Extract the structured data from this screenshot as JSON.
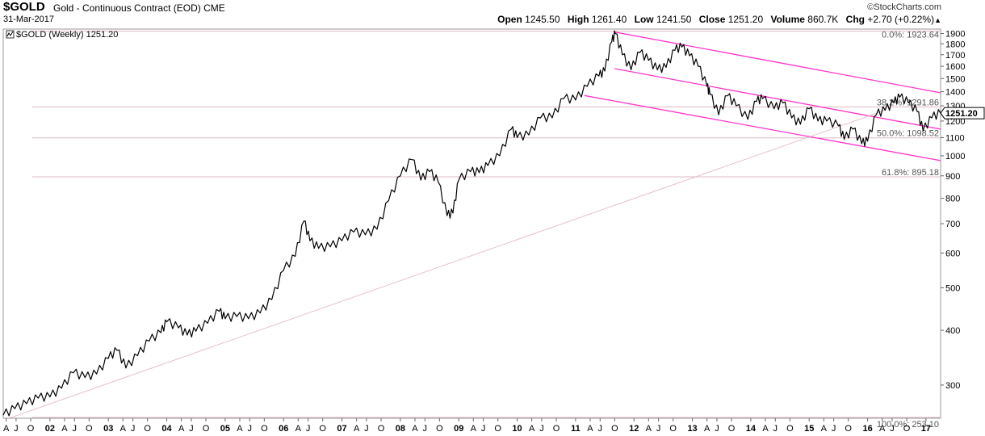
{
  "header": {
    "symbol": "$GOLD",
    "description": "Gold - Continuous Contract (EOD)",
    "exchange": "CME",
    "date": "31-Mar-2017",
    "brand": "©StockCharts.com",
    "open_label": "Open",
    "open": "1245.50",
    "high_label": "High",
    "high": "1261.40",
    "low_label": "Low",
    "low": "1241.50",
    "close_label": "Close",
    "close": "1251.20",
    "volume_label": "Volume",
    "volume": "860.7K",
    "chg_label": "Chg",
    "chg": "+2.70 (+0.22%)"
  },
  "chart_data": {
    "type": "line",
    "legend": "$GOLD (Weekly) 1251.20",
    "last_price_tag": "1251.20",
    "y_scale": "log",
    "ylim": [
      252,
      1945
    ],
    "y_ticks": [
      1900,
      1800,
      1700,
      1600,
      1500,
      1400,
      1300,
      1200,
      1100,
      1000,
      900,
      800,
      700,
      600,
      500,
      400,
      300
    ],
    "x_range": [
      2001.2,
      2017.25
    ],
    "x_ticks": [
      {
        "label": "A",
        "x": 2001.25
      },
      {
        "label": "J",
        "x": 2001.42
      },
      {
        "label": "O",
        "x": 2001.67
      },
      {
        "label": "02",
        "x": 2002.0
      },
      {
        "label": "A",
        "x": 2002.25
      },
      {
        "label": "J",
        "x": 2002.42
      },
      {
        "label": "O",
        "x": 2002.67
      },
      {
        "label": "03",
        "x": 2003.0
      },
      {
        "label": "A",
        "x": 2003.25
      },
      {
        "label": "J",
        "x": 2003.42
      },
      {
        "label": "O",
        "x": 2003.67
      },
      {
        "label": "04",
        "x": 2004.0
      },
      {
        "label": "A",
        "x": 2004.25
      },
      {
        "label": "J",
        "x": 2004.42
      },
      {
        "label": "O",
        "x": 2004.67
      },
      {
        "label": "05",
        "x": 2005.0
      },
      {
        "label": "A",
        "x": 2005.25
      },
      {
        "label": "J",
        "x": 2005.42
      },
      {
        "label": "O",
        "x": 2005.67
      },
      {
        "label": "06",
        "x": 2006.0
      },
      {
        "label": "A",
        "x": 2006.25
      },
      {
        "label": "J",
        "x": 2006.42
      },
      {
        "label": "O",
        "x": 2006.67
      },
      {
        "label": "07",
        "x": 2007.0
      },
      {
        "label": "A",
        "x": 2007.25
      },
      {
        "label": "J",
        "x": 2007.42
      },
      {
        "label": "O",
        "x": 2007.67
      },
      {
        "label": "08",
        "x": 2008.0
      },
      {
        "label": "A",
        "x": 2008.25
      },
      {
        "label": "J",
        "x": 2008.42
      },
      {
        "label": "O",
        "x": 2008.67
      },
      {
        "label": "09",
        "x": 2009.0
      },
      {
        "label": "A",
        "x": 2009.25
      },
      {
        "label": "J",
        "x": 2009.42
      },
      {
        "label": "O",
        "x": 2009.67
      },
      {
        "label": "10",
        "x": 2010.0
      },
      {
        "label": "A",
        "x": 2010.25
      },
      {
        "label": "J",
        "x": 2010.42
      },
      {
        "label": "O",
        "x": 2010.67
      },
      {
        "label": "11",
        "x": 2011.0
      },
      {
        "label": "A",
        "x": 2011.25
      },
      {
        "label": "J",
        "x": 2011.42
      },
      {
        "label": "O",
        "x": 2011.67
      },
      {
        "label": "12",
        "x": 2012.0
      },
      {
        "label": "A",
        "x": 2012.25
      },
      {
        "label": "J",
        "x": 2012.42
      },
      {
        "label": "O",
        "x": 2012.67
      },
      {
        "label": "13",
        "x": 2013.0
      },
      {
        "label": "A",
        "x": 2013.25
      },
      {
        "label": "J",
        "x": 2013.42
      },
      {
        "label": "O",
        "x": 2013.67
      },
      {
        "label": "14",
        "x": 2014.0
      },
      {
        "label": "A",
        "x": 2014.25
      },
      {
        "label": "J",
        "x": 2014.42
      },
      {
        "label": "O",
        "x": 2014.67
      },
      {
        "label": "15",
        "x": 2015.0
      },
      {
        "label": "A",
        "x": 2015.25
      },
      {
        "label": "J",
        "x": 2015.42
      },
      {
        "label": "O",
        "x": 2015.67
      },
      {
        "label": "16",
        "x": 2016.0
      },
      {
        "label": "A",
        "x": 2016.25
      },
      {
        "label": "J",
        "x": 2016.42
      },
      {
        "label": "O",
        "x": 2016.67
      },
      {
        "label": "17",
        "x": 2017.0
      }
    ],
    "series": [
      {
        "points": [
          [
            2001.2,
            256
          ],
          [
            2001.4,
            265
          ],
          [
            2001.6,
            272
          ],
          [
            2001.8,
            280
          ],
          [
            2002.0,
            282
          ],
          [
            2002.2,
            295
          ],
          [
            2002.4,
            320
          ],
          [
            2002.6,
            312
          ],
          [
            2002.8,
            318
          ],
          [
            2003.0,
            345
          ],
          [
            2003.15,
            360
          ],
          [
            2003.3,
            328
          ],
          [
            2003.5,
            350
          ],
          [
            2003.7,
            378
          ],
          [
            2003.9,
            395
          ],
          [
            2004.0,
            418
          ],
          [
            2004.2,
            405
          ],
          [
            2004.35,
            390
          ],
          [
            2004.5,
            398
          ],
          [
            2004.7,
            415
          ],
          [
            2004.9,
            442
          ],
          [
            2005.0,
            425
          ],
          [
            2005.2,
            430
          ],
          [
            2005.4,
            425
          ],
          [
            2005.6,
            438
          ],
          [
            2005.8,
            470
          ],
          [
            2006.0,
            548
          ],
          [
            2006.2,
            590
          ],
          [
            2006.35,
            710
          ],
          [
            2006.45,
            640
          ],
          [
            2006.6,
            615
          ],
          [
            2006.8,
            620
          ],
          [
            2007.0,
            640
          ],
          [
            2007.2,
            670
          ],
          [
            2007.4,
            660
          ],
          [
            2007.6,
            680
          ],
          [
            2007.8,
            790
          ],
          [
            2008.0,
            900
          ],
          [
            2008.2,
            980
          ],
          [
            2008.35,
            880
          ],
          [
            2008.5,
            920
          ],
          [
            2008.65,
            870
          ],
          [
            2008.8,
            730
          ],
          [
            2008.9,
            740
          ],
          [
            2009.0,
            880
          ],
          [
            2009.2,
            920
          ],
          [
            2009.35,
            915
          ],
          [
            2009.5,
            950
          ],
          [
            2009.7,
            1000
          ],
          [
            2009.9,
            1150
          ],
          [
            2010.0,
            1100
          ],
          [
            2010.2,
            1115
          ],
          [
            2010.4,
            1220
          ],
          [
            2010.6,
            1220
          ],
          [
            2010.8,
            1350
          ],
          [
            2011.0,
            1340
          ],
          [
            2011.2,
            1440
          ],
          [
            2011.4,
            1520
          ],
          [
            2011.5,
            1560
          ],
          [
            2011.62,
            1820
          ],
          [
            2011.68,
            1900
          ],
          [
            2011.8,
            1700
          ],
          [
            2011.95,
            1570
          ],
          [
            2012.1,
            1720
          ],
          [
            2012.25,
            1650
          ],
          [
            2012.4,
            1570
          ],
          [
            2012.55,
            1590
          ],
          [
            2012.7,
            1740
          ],
          [
            2012.82,
            1770
          ],
          [
            2012.95,
            1690
          ],
          [
            2013.1,
            1600
          ],
          [
            2013.25,
            1440
          ],
          [
            2013.3,
            1380
          ],
          [
            2013.45,
            1240
          ],
          [
            2013.6,
            1370
          ],
          [
            2013.75,
            1300
          ],
          [
            2013.95,
            1210
          ],
          [
            2014.1,
            1330
          ],
          [
            2014.2,
            1350
          ],
          [
            2014.4,
            1280
          ],
          [
            2014.55,
            1320
          ],
          [
            2014.7,
            1220
          ],
          [
            2014.85,
            1180
          ],
          [
            2015.0,
            1280
          ],
          [
            2015.15,
            1200
          ],
          [
            2015.3,
            1200
          ],
          [
            2015.5,
            1170
          ],
          [
            2015.6,
            1090
          ],
          [
            2015.75,
            1150
          ],
          [
            2015.9,
            1065
          ],
          [
            2016.0,
            1080
          ],
          [
            2016.15,
            1240
          ],
          [
            2016.3,
            1270
          ],
          [
            2016.45,
            1320
          ],
          [
            2016.55,
            1360
          ],
          [
            2016.7,
            1320
          ],
          [
            2016.85,
            1260
          ],
          [
            2016.95,
            1140
          ],
          [
            2017.1,
            1220
          ],
          [
            2017.25,
            1251
          ]
        ]
      }
    ],
    "trendlines": [
      {
        "from": [
          2011.67,
          1915
        ],
        "to": [
          2017.25,
          1392
        ]
      },
      {
        "from": [
          2011.67,
          1580
        ],
        "to": [
          2017.25,
          1150
        ]
      },
      {
        "from": [
          2011.15,
          1372
        ],
        "to": [
          2017.25,
          975
        ]
      },
      {
        "from": [
          2001.3,
          252
        ],
        "to": [
          2016.3,
          1270
        ]
      }
    ],
    "fib_levels": [
      {
        "label": "0.0%: 1923.64",
        "value": 1923.64
      },
      {
        "label": "38.2%: 1291.86",
        "value": 1291.86
      },
      {
        "label": "50.0%: 1098.52",
        "value": 1098.52
      },
      {
        "label": "61.8%: 895.18",
        "value": 895.18
      },
      {
        "label": "100.0%: 253.10",
        "value": 253.1
      }
    ],
    "colors": {
      "price": "#000000",
      "channel": "#ff33cc",
      "fib": "#e0b8c4",
      "trend": "#e8c0c8",
      "grid": "#dddddd"
    }
  }
}
